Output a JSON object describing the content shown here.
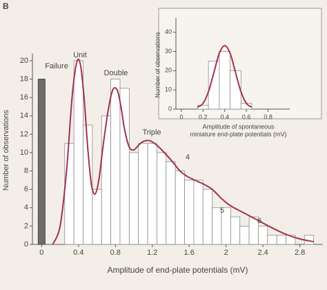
{
  "panel_label": "B",
  "chart_data": [
    {
      "type": "histogram",
      "x_label": "Amplitude of end-plate potentials (mV)",
      "y_label": "Number of observations",
      "bins": [
        0.25,
        0.35,
        0.45,
        0.55,
        0.65,
        0.75,
        0.85,
        0.95,
        1.05,
        1.15,
        1.25,
        1.35,
        1.45,
        1.55,
        1.65,
        1.75,
        1.85,
        1.95,
        2.05,
        2.15,
        2.25,
        2.35,
        2.45,
        2.55,
        2.65,
        2.75,
        2.85,
        2.95
      ],
      "counts": [
        11,
        20,
        13,
        6,
        14,
        18,
        17,
        10,
        11,
        11,
        10,
        9,
        8,
        7,
        7,
        6,
        4,
        4,
        3,
        2,
        3,
        2,
        1,
        1,
        1,
        0,
        1
      ],
      "bar_color": "#ffffff",
      "failure": {
        "x": 0,
        "value": 18,
        "color": "#6e6e6e"
      },
      "curve": {
        "color": "#a3304e",
        "x": [
          0.12,
          0.2,
          0.27,
          0.33,
          0.38,
          0.42,
          0.46,
          0.5,
          0.54,
          0.58,
          0.62,
          0.67,
          0.72,
          0.77,
          0.82,
          0.86,
          0.9,
          0.95,
          1.0,
          1.05,
          1.1,
          1.17,
          1.25,
          1.33,
          1.42,
          1.5,
          1.58,
          1.66,
          1.75,
          1.85,
          1.95,
          2.05,
          2.2,
          2.35,
          2.5,
          2.65,
          2.8,
          2.95
        ],
        "y": [
          0,
          2,
          8,
          16,
          19.8,
          19.6,
          16,
          10.5,
          6.5,
          5.5,
          7,
          11,
          14.5,
          16.8,
          16.8,
          15,
          12.5,
          10.6,
          10.3,
          10.8,
          11.2,
          11.3,
          10.8,
          10,
          9,
          8,
          7.4,
          7,
          6.6,
          6,
          5,
          4.2,
          3.4,
          2.6,
          1.8,
          1.1,
          0.6,
          0.3
        ]
      },
      "annotations": [
        "Failure",
        "Unit",
        "Double",
        "Triple",
        "4",
        "5",
        "6"
      ],
      "xlim": [
        -0.1,
        3.05
      ],
      "xticks": [
        0,
        0.4,
        0.8,
        1.2,
        1.6,
        2.0,
        2.4,
        2.8
      ],
      "ylim": [
        0,
        20.5
      ],
      "yticks": [
        0,
        2,
        4,
        6,
        8,
        10,
        12,
        14,
        16,
        18,
        20
      ]
    },
    {
      "type": "histogram",
      "x_label": [
        "Amplitude of spontaneous",
        "miniature end-plate potentials (mV)"
      ],
      "y_label": "Number of observations",
      "bins": [
        0.15,
        0.25,
        0.35,
        0.45,
        0.55,
        0.65
      ],
      "counts": [
        2,
        25,
        30,
        20,
        3
      ],
      "bar_color": "#ffffff",
      "curve": {
        "color": "#a3304e",
        "x": [
          0.15,
          0.2,
          0.25,
          0.3,
          0.35,
          0.4,
          0.45,
          0.5,
          0.55,
          0.6,
          0.65
        ],
        "y": [
          1,
          3,
          9,
          19,
          29,
          33,
          29,
          19,
          9,
          3,
          1
        ]
      },
      "xlim": [
        -0.05,
        1.0
      ],
      "xticks": [
        0,
        0.2,
        0.4,
        0.6,
        0.8
      ],
      "ylim": [
        0,
        46
      ],
      "yticks": [
        0,
        10,
        20,
        30,
        40
      ]
    }
  ]
}
